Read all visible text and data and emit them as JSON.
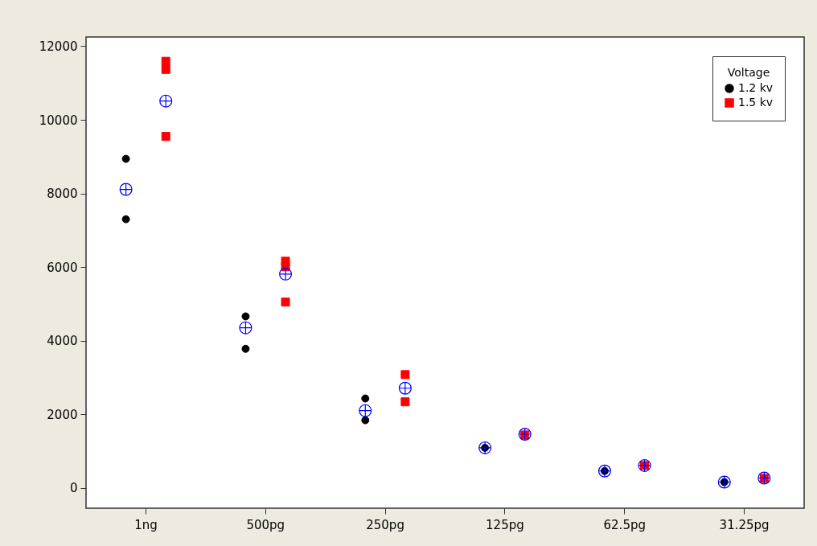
{
  "chart_data": {
    "type": "scatter",
    "categories": [
      "1ng",
      "500pg",
      "250pg",
      "125pg",
      "62.5pg",
      "31.25pg"
    ],
    "legend_title": "Voltage",
    "legend": "top right",
    "ylim": [
      -550,
      12250
    ],
    "yticks": [
      0,
      2000,
      4000,
      6000,
      8000,
      10000,
      12000
    ],
    "grid": false,
    "series": [
      {
        "name": "1.2 kv",
        "color": "#000000",
        "marker": "circle",
        "x": [
          "1ng",
          "1ng",
          "500pg",
          "500pg",
          "250pg",
          "250pg",
          "125pg",
          "62.5pg",
          "31.25pg"
        ],
        "values": [
          8940,
          7300,
          4660,
          3780,
          2430,
          1840,
          1090,
          460,
          160
        ]
      },
      {
        "name": "1.5 kv",
        "color": "#ff0000",
        "marker": "square",
        "x": [
          "1ng",
          "1ng",
          "1ng",
          "500pg",
          "500pg",
          "500pg",
          "250pg",
          "250pg",
          "125pg",
          "62.5pg",
          "31.25pg"
        ],
        "values": [
          11590,
          11370,
          9550,
          6160,
          6010,
          5050,
          3080,
          2340,
          1440,
          610,
          260
        ]
      },
      {
        "color": "#0000ff",
        "marker": "cross",
        "values": [
          8110,
          4350,
          2100,
          1090,
          460,
          160
        ]
      },
      {
        "color": "#0000ff",
        "marker": "cross",
        "values": [
          10510,
          5810,
          2710,
          1460,
          610,
          270
        ]
      }
    ]
  }
}
